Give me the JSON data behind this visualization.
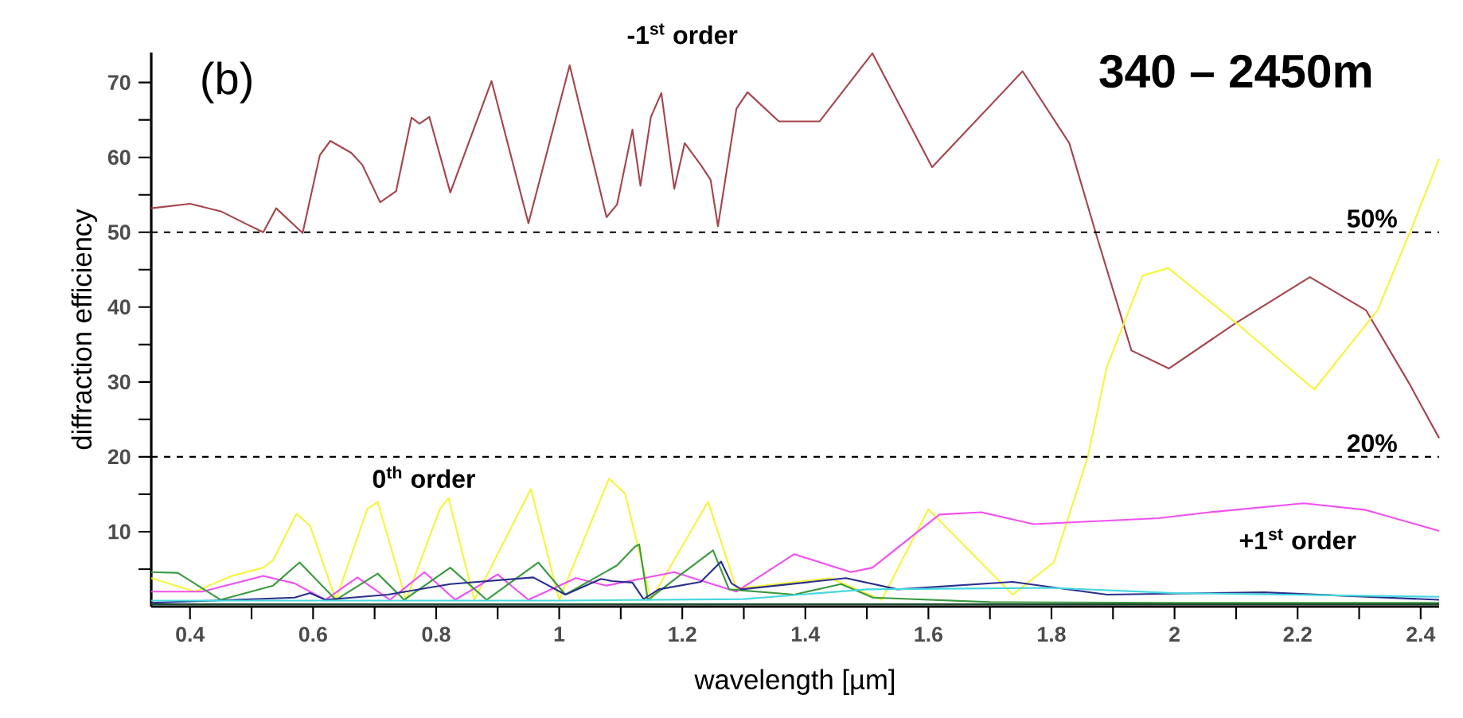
{
  "chart_data": {
    "type": "line",
    "title": "340 – 2450m",
    "xlabel": "wavelength [µm]",
    "ylabel": "diffraction efficiency",
    "annotations": [
      "(b)"
    ],
    "xlim": [
      0.337,
      2.43
    ],
    "ylim": [
      0,
      74
    ],
    "xticks": [
      0.4,
      {
        "value": 0.5,
        "label": null
      },
      0.6,
      {
        "value": 0.7,
        "label": null
      },
      0.8,
      {
        "value": 0.9,
        "label": null
      },
      1,
      {
        "value": 1.1,
        "label": null
      },
      1.2,
      {
        "value": 1.3,
        "label": null
      },
      1.4,
      {
        "value": 1.5,
        "label": null
      },
      1.6,
      {
        "value": 1.7,
        "label": null
      },
      1.8,
      {
        "value": 1.9,
        "label": null
      },
      2,
      {
        "value": 2.1,
        "label": null
      },
      2.2,
      {
        "value": 2.3,
        "label": null
      },
      2.4
    ],
    "yticks": [
      {
        "value": 5,
        "label": null
      },
      10,
      {
        "value": 15,
        "label": null
      },
      20,
      {
        "value": 25,
        "label": null
      },
      30,
      {
        "value": 35,
        "label": null
      },
      40,
      {
        "value": 45,
        "label": null
      },
      50,
      {
        "value": 55,
        "label": null
      },
      60,
      {
        "value": 65,
        "label": null
      },
      70
    ],
    "grid": false,
    "marker": "none",
    "line_style": "solid",
    "ref_lines": [
      {
        "axis": "y",
        "value": 50,
        "label": "50%",
        "color": "#000000",
        "line_style": "dashed"
      },
      {
        "axis": "y",
        "value": 20,
        "label": "20%",
        "color": "#000000",
        "line_style": "dashed"
      }
    ],
    "series": [
      {
        "name": "-1$^{st}$ order",
        "color": "#a5454c",
        "x": [
          0.337,
          0.4,
          0.45,
          0.494,
          0.519,
          0.54,
          0.583,
          0.611,
          0.628,
          0.662,
          0.68,
          0.709,
          0.735,
          0.76,
          0.773,
          0.789,
          0.823,
          0.89,
          0.95,
          1.017,
          1.077,
          1.094,
          1.119,
          1.132,
          1.149,
          1.166,
          1.187,
          1.204,
          1.23,
          1.246,
          1.258,
          1.288,
          1.306,
          1.357,
          1.423,
          1.509,
          1.606,
          1.753,
          1.829,
          1.872,
          1.93,
          1.991,
          2.1,
          2.22,
          2.311,
          2.38,
          2.43
        ],
        "values": [
          53.2,
          53.8,
          52.8,
          51,
          50,
          53.2,
          49.9,
          60.3,
          62.2,
          60.6,
          59,
          54,
          55.5,
          65.3,
          64.5,
          65.4,
          55.3,
          70.2,
          51.2,
          72.3,
          52,
          53.7,
          63.7,
          56.2,
          65.4,
          68.6,
          55.8,
          61.9,
          59,
          57,
          50.8,
          66.5,
          68.7,
          64.8,
          64.8,
          73.9,
          58.7,
          71.5,
          61.9,
          49.9,
          34.2,
          31.8,
          37.9,
          44,
          39.6,
          30,
          22.5
        ]
      },
      {
        "name": "0$^{th}$ order",
        "color": "#f5f53c",
        "x": [
          0.337,
          0.408,
          0.468,
          0.519,
          0.535,
          0.573,
          0.595,
          0.637,
          0.688,
          0.705,
          0.751,
          0.806,
          0.82,
          0.862,
          0.954,
          1.0,
          1.081,
          1.107,
          1.149,
          1.242,
          1.288,
          1.44,
          1.524,
          1.6,
          1.737,
          1.804,
          1.859,
          1.89,
          1.948,
          1.99,
          2.1,
          2.227,
          2.33,
          2.387,
          2.43
        ],
        "values": [
          3.8,
          2,
          4.1,
          5.2,
          6.2,
          12.4,
          10.8,
          0.9,
          13,
          14,
          0.9,
          13,
          14.5,
          0.9,
          15.7,
          0.9,
          17.1,
          15.1,
          0.9,
          14,
          2.4,
          3.8,
          0.9,
          13,
          1.6,
          5.9,
          20,
          32,
          44.2,
          45.2,
          37.9,
          29,
          39.6,
          50.9,
          59.8
        ]
      },
      {
        "name": "+1$^{st}$ order",
        "color": "#f050f0",
        "x": [
          0.337,
          0.42,
          0.519,
          0.57,
          0.62,
          0.672,
          0.725,
          0.781,
          0.831,
          0.9,
          0.95,
          1.027,
          1.077,
          1.187,
          1.288,
          1.382,
          1.474,
          1.509,
          1.618,
          1.686,
          1.771,
          1.974,
          2.057,
          2.21,
          2.311,
          2.43
        ],
        "values": [
          2,
          2,
          4.1,
          3.1,
          0.9,
          3.9,
          0.9,
          4.6,
          0.9,
          4.3,
          0.9,
          3.8,
          2.8,
          4.6,
          2,
          7,
          4.6,
          5.2,
          12.3,
          12.6,
          11,
          11.8,
          12.6,
          13.8,
          12.9,
          10.1
        ]
      },
      {
        "color": "#3c9a40",
        "x": [
          0.337,
          0.38,
          0.45,
          0.535,
          0.578,
          0.637,
          0.705,
          0.748,
          0.823,
          0.882,
          0.966,
          1.01,
          1.094,
          1.123,
          1.13,
          1.144,
          1.195,
          1.25,
          1.276,
          1.382,
          1.458,
          1.51,
          1.7,
          2.0,
          2.43
        ],
        "values": [
          4.6,
          4.5,
          0.9,
          2.8,
          5.9,
          0.9,
          4.4,
          0.9,
          5.2,
          0.9,
          5.9,
          1.6,
          5.5,
          8,
          8.3,
          0.9,
          4.1,
          7.5,
          2.3,
          1.6,
          3,
          1.2,
          0.6,
          0.5,
          0.5
        ]
      },
      {
        "color": "#2b2f8c",
        "x": [
          0.337,
          0.57,
          0.595,
          0.62,
          0.722,
          0.823,
          0.958,
          1.01,
          1.068,
          1.086,
          1.119,
          1.137,
          1.162,
          1.23,
          1.263,
          1.28,
          1.296,
          1.466,
          1.55,
          1.737,
          1.89,
          2.145,
          2.43
        ],
        "values": [
          0.5,
          1.2,
          1.8,
          0.9,
          1.6,
          3,
          3.9,
          1.6,
          3.7,
          3.4,
          3.2,
          1,
          2.3,
          3.3,
          6,
          3.1,
          2.3,
          3.8,
          2.3,
          3.3,
          1.6,
          1.9,
          0.9
        ]
      },
      {
        "color": "#46d8e0",
        "x": [
          0.337,
          1.0,
          1.3,
          1.5,
          1.8,
          2.0,
          2.43
        ],
        "values": [
          0.8,
          0.8,
          1,
          2.3,
          2.5,
          1.8,
          1.3
        ]
      },
      {
        "color": "#1d4a30",
        "x": [
          0.337,
          1.0,
          1.8,
          2.43
        ],
        "values": [
          0.3,
          0.3,
          0.3,
          0.3
        ]
      }
    ]
  }
}
